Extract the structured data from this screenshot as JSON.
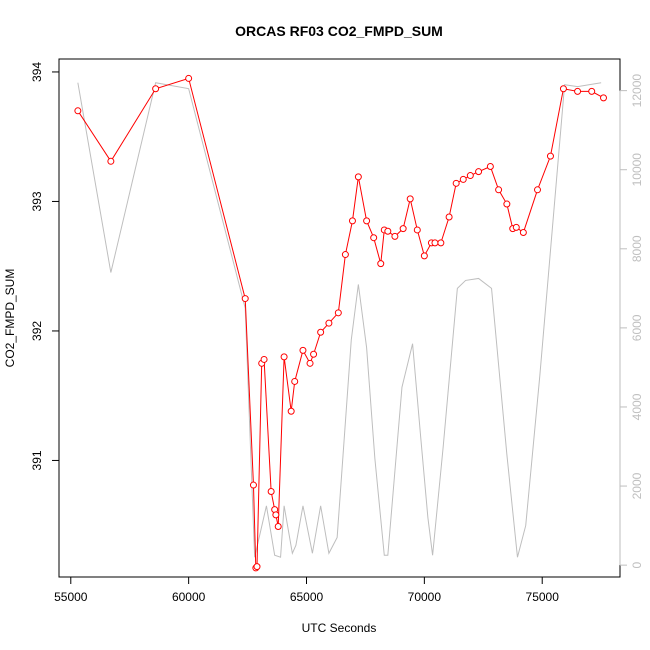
{
  "chart_data": {
    "type": "line",
    "title": "ORCAS RF03 CO2_FMPD_SUM",
    "xlabel": "UTC Seconds",
    "ylabel": "CO2_FMPD_SUM",
    "xlim": [
      54500,
      78300
    ],
    "ylim": [
      390.1,
      394.1
    ],
    "y2lim": [
      -300,
      12800
    ],
    "xticks": [
      "55000",
      "60000",
      "65000",
      "70000",
      "75000"
    ],
    "yticks": [
      "391",
      "392",
      "393",
      "394"
    ],
    "y2ticks": [
      "0",
      "2000",
      "4000",
      "6000",
      "8000",
      "10000",
      "12000"
    ],
    "colors": {
      "series": "#ff0000",
      "secondary": "#bebebe"
    },
    "series": [
      {
        "role": "primary",
        "marker": "open-circle",
        "x": [
          55300,
          56700,
          58600,
          60000,
          62400,
          62750,
          62850,
          62900,
          63100,
          63200,
          63500,
          63650,
          63700,
          63800,
          64050,
          64350,
          64500,
          64850,
          65150,
          65300,
          65600,
          65950,
          66350,
          66650,
          66950,
          67200,
          67550,
          67850,
          68150,
          68300,
          68450,
          68750,
          69100,
          69400,
          69700,
          70000,
          70300,
          70450,
          70700,
          71050,
          71350,
          71650,
          71950,
          72300,
          72800,
          73150,
          73500,
          73750,
          73900,
          74200,
          74800,
          75350,
          75900,
          76500,
          77100,
          77600
        ],
        "y": [
          393.7,
          393.31,
          393.87,
          393.95,
          392.25,
          390.81,
          390.17,
          390.18,
          391.75,
          391.78,
          390.76,
          390.62,
          390.58,
          390.49,
          391.8,
          391.38,
          391.61,
          391.85,
          391.75,
          391.82,
          391.99,
          392.06,
          392.14,
          392.59,
          392.85,
          393.19,
          392.85,
          392.72,
          392.52,
          392.78,
          392.77,
          392.73,
          392.79,
          393.02,
          392.78,
          392.58,
          392.68,
          392.68,
          392.68,
          392.88,
          393.14,
          393.17,
          393.2,
          393.23,
          393.27,
          393.09,
          392.98,
          392.79,
          392.8,
          392.76,
          393.09,
          393.35,
          393.87,
          393.85,
          393.85,
          393.8
        ]
      },
      {
        "role": "secondary-axis",
        "x": [
          55300,
          56700,
          58600,
          60000,
          62400,
          62800,
          63300,
          63650,
          63900,
          64050,
          64400,
          64550,
          64850,
          65250,
          65600,
          65950,
          66300,
          66900,
          67200,
          67550,
          67900,
          68300,
          68450,
          69050,
          69500,
          69850,
          70150,
          70350,
          70800,
          71400,
          71750,
          72300,
          72850,
          73500,
          73950,
          74300,
          74900,
          75950,
          76500,
          77500
        ],
        "y": [
          12200,
          7400,
          12200,
          12050,
          6500,
          200,
          1500,
          250,
          200,
          1500,
          300,
          500,
          1500,
          300,
          1500,
          300,
          700,
          5700,
          7100,
          5500,
          2700,
          250,
          250,
          4500,
          5600,
          3200,
          1200,
          250,
          3000,
          7000,
          7200,
          7250,
          7000,
          2800,
          200,
          1000,
          4800,
          12150,
          12100,
          12200
        ]
      }
    ]
  }
}
